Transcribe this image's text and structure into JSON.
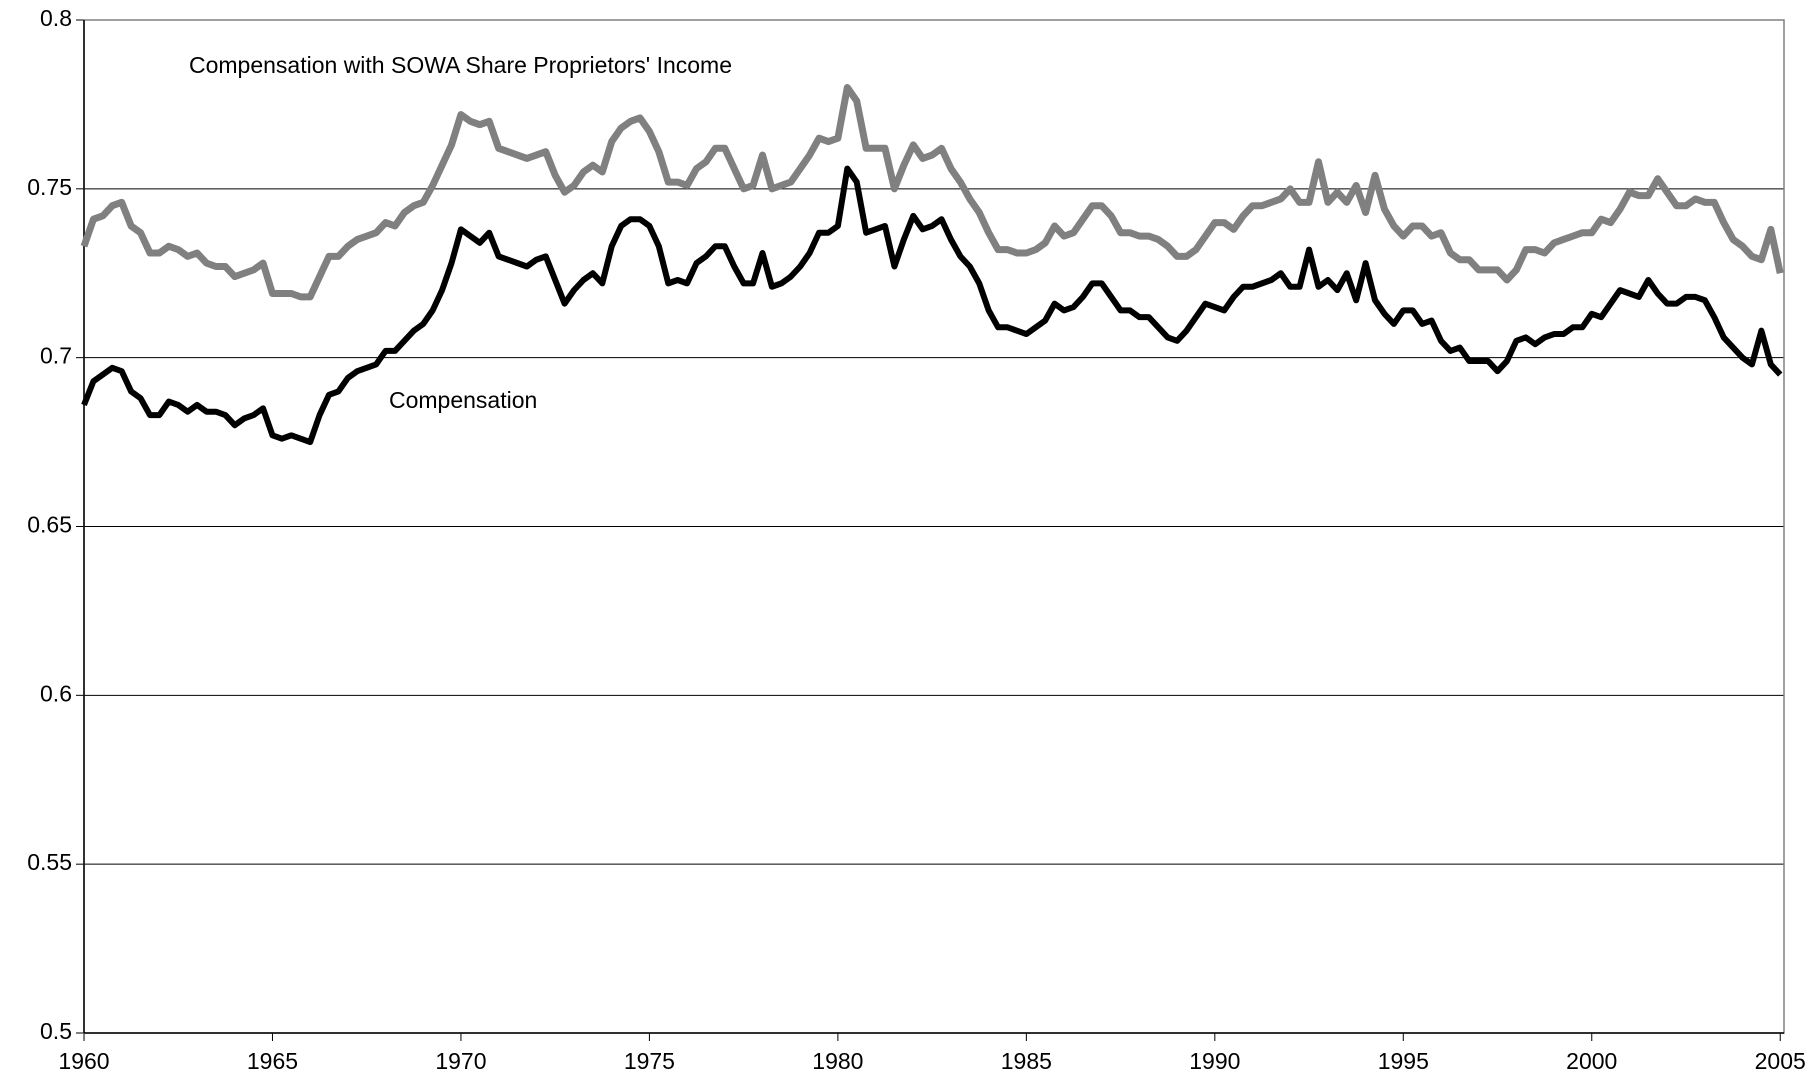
{
  "chart_data": {
    "type": "line",
    "x": [
      1960,
      1960.25,
      1960.5,
      1960.75,
      1961,
      1961.25,
      1961.5,
      1961.75,
      1962,
      1962.25,
      1962.5,
      1962.75,
      1963,
      1963.25,
      1963.5,
      1963.75,
      1964,
      1964.25,
      1964.5,
      1964.75,
      1965,
      1965.25,
      1965.5,
      1965.75,
      1966,
      1966.25,
      1966.5,
      1966.75,
      1967,
      1967.25,
      1967.5,
      1967.75,
      1968,
      1968.25,
      1968.5,
      1968.75,
      1969,
      1969.25,
      1969.5,
      1969.75,
      1970,
      1970.25,
      1970.5,
      1970.75,
      1971,
      1971.25,
      1971.5,
      1971.75,
      1972,
      1972.25,
      1972.5,
      1972.75,
      1973,
      1973.25,
      1973.5,
      1973.75,
      1974,
      1974.25,
      1974.5,
      1974.75,
      1975,
      1975.25,
      1975.5,
      1975.75,
      1976,
      1976.25,
      1976.5,
      1976.75,
      1977,
      1977.25,
      1977.5,
      1977.75,
      1978,
      1978.25,
      1978.5,
      1978.75,
      1979,
      1979.25,
      1979.5,
      1979.75,
      1980,
      1980.25,
      1980.5,
      1980.75,
      1981,
      1981.25,
      1981.5,
      1981.75,
      1982,
      1982.25,
      1982.5,
      1982.75,
      1983,
      1983.25,
      1983.5,
      1983.75,
      1984,
      1984.25,
      1984.5,
      1984.75,
      1985,
      1985.25,
      1985.5,
      1985.75,
      1986,
      1986.25,
      1986.5,
      1986.75,
      1987,
      1987.25,
      1987.5,
      1987.75,
      1988,
      1988.25,
      1988.5,
      1988.75,
      1989,
      1989.25,
      1989.5,
      1989.75,
      1990,
      1990.25,
      1990.5,
      1990.75,
      1991,
      1991.25,
      1991.5,
      1991.75,
      1992,
      1992.25,
      1992.5,
      1992.75,
      1993,
      1993.25,
      1993.5,
      1993.75,
      1994,
      1994.25,
      1994.5,
      1994.75,
      1995,
      1995.25,
      1995.5,
      1995.75,
      1996,
      1996.25,
      1996.5,
      1996.75,
      1997,
      1997.25,
      1997.5,
      1997.75,
      1998,
      1998.25,
      1998.5,
      1998.75,
      1999,
      1999.25,
      1999.5,
      1999.75,
      2000,
      2000.25,
      2000.5,
      2000.75,
      2001,
      2001.25,
      2001.5,
      2001.75,
      2002,
      2002.25,
      2002.5,
      2002.75,
      2003,
      2003.25,
      2003.5,
      2003.75,
      2004,
      2004.25,
      2004.5,
      2004.75,
      2005
    ],
    "series": [
      {
        "name": "Compensation with SOWA Share Proprietors' Income",
        "color": "#808080",
        "values": [
          0.733,
          0.741,
          0.742,
          0.745,
          0.746,
          0.739,
          0.737,
          0.731,
          0.731,
          0.733,
          0.732,
          0.73,
          0.731,
          0.728,
          0.727,
          0.727,
          0.724,
          0.725,
          0.726,
          0.728,
          0.719,
          0.719,
          0.719,
          0.718,
          0.718,
          0.724,
          0.73,
          0.73,
          0.733,
          0.735,
          0.736,
          0.737,
          0.74,
          0.739,
          0.743,
          0.745,
          0.746,
          0.751,
          0.757,
          0.763,
          0.772,
          0.77,
          0.769,
          0.77,
          0.762,
          0.761,
          0.76,
          0.759,
          0.76,
          0.761,
          0.754,
          0.749,
          0.751,
          0.755,
          0.757,
          0.755,
          0.764,
          0.768,
          0.77,
          0.771,
          0.767,
          0.761,
          0.752,
          0.752,
          0.751,
          0.756,
          0.758,
          0.762,
          0.762,
          0.756,
          0.75,
          0.751,
          0.76,
          0.75,
          0.751,
          0.752,
          0.756,
          0.76,
          0.765,
          0.764,
          0.765,
          0.78,
          0.776,
          0.762,
          0.762,
          0.762,
          0.75,
          0.757,
          0.763,
          0.759,
          0.76,
          0.762,
          0.756,
          0.752,
          0.747,
          0.743,
          0.737,
          0.732,
          0.732,
          0.731,
          0.731,
          0.732,
          0.734,
          0.739,
          0.736,
          0.737,
          0.741,
          0.745,
          0.745,
          0.742,
          0.737,
          0.737,
          0.736,
          0.736,
          0.735,
          0.733,
          0.73,
          0.73,
          0.732,
          0.736,
          0.74,
          0.74,
          0.738,
          0.742,
          0.745,
          0.745,
          0.746,
          0.747,
          0.75,
          0.746,
          0.746,
          0.758,
          0.746,
          0.749,
          0.746,
          0.751,
          0.743,
          0.754,
          0.744,
          0.739,
          0.736,
          0.739,
          0.739,
          0.736,
          0.737,
          0.731,
          0.729,
          0.729,
          0.726,
          0.726,
          0.726,
          0.723,
          0.726,
          0.732,
          0.732,
          0.731,
          0.734,
          0.735,
          0.736,
          0.737,
          0.737,
          0.741,
          0.74,
          0.744,
          0.749,
          0.748,
          0.748,
          0.753,
          0.749,
          0.745,
          0.745,
          0.747,
          0.746,
          0.746,
          0.74,
          0.735,
          0.733,
          0.73,
          0.729,
          0.738,
          0.725
        ]
      },
      {
        "name": "Compensation",
        "color": "#000000",
        "values": [
          0.686,
          0.693,
          0.695,
          0.697,
          0.696,
          0.69,
          0.688,
          0.683,
          0.683,
          0.687,
          0.686,
          0.684,
          0.686,
          0.684,
          0.684,
          0.683,
          0.68,
          0.682,
          0.683,
          0.685,
          0.677,
          0.676,
          0.677,
          0.676,
          0.675,
          0.683,
          0.689,
          0.69,
          0.694,
          0.696,
          0.697,
          0.698,
          0.702,
          0.702,
          0.705,
          0.708,
          0.71,
          0.714,
          0.72,
          0.728,
          0.738,
          0.736,
          0.734,
          0.737,
          0.73,
          0.729,
          0.728,
          0.727,
          0.729,
          0.73,
          0.723,
          0.716,
          0.72,
          0.723,
          0.725,
          0.722,
          0.733,
          0.739,
          0.741,
          0.741,
          0.739,
          0.733,
          0.722,
          0.723,
          0.722,
          0.728,
          0.73,
          0.733,
          0.733,
          0.727,
          0.722,
          0.722,
          0.731,
          0.721,
          0.722,
          0.724,
          0.727,
          0.731,
          0.737,
          0.737,
          0.739,
          0.756,
          0.752,
          0.737,
          0.738,
          0.739,
          0.727,
          0.735,
          0.742,
          0.738,
          0.739,
          0.741,
          0.735,
          0.73,
          0.727,
          0.722,
          0.714,
          0.709,
          0.709,
          0.708,
          0.707,
          0.709,
          0.711,
          0.716,
          0.714,
          0.715,
          0.718,
          0.722,
          0.722,
          0.718,
          0.714,
          0.714,
          0.712,
          0.712,
          0.709,
          0.706,
          0.705,
          0.708,
          0.712,
          0.716,
          0.715,
          0.714,
          0.718,
          0.721,
          0.721,
          0.722,
          0.723,
          0.725,
          0.721,
          0.721,
          0.732,
          0.721,
          0.723,
          0.72,
          0.725,
          0.717,
          0.728,
          0.717,
          0.713,
          0.71,
          0.714,
          0.714,
          0.71,
          0.711,
          0.705,
          0.702,
          0.703,
          0.699,
          0.699,
          0.699,
          0.696,
          0.699,
          0.705,
          0.706,
          0.704,
          0.706,
          0.707,
          0.707,
          0.709,
          0.709,
          0.713,
          0.712,
          0.716,
          0.72,
          0.719,
          0.718,
          0.723,
          0.719,
          0.716,
          0.716,
          0.718,
          0.718,
          0.717,
          0.712,
          0.706,
          0.703,
          0.7,
          0.698,
          0.708,
          0.698,
          0.695
        ]
      }
    ],
    "xlim": [
      1960,
      2005.1
    ],
    "xticks": [
      1960,
      1965,
      1970,
      1975,
      1980,
      1985,
      1990,
      1995,
      2000,
      2005
    ],
    "ylim": [
      0.5,
      0.8
    ],
    "yticks": [
      0.5,
      0.55,
      0.6,
      0.65,
      0.7,
      0.75,
      0.8
    ],
    "grid": true
  }
}
